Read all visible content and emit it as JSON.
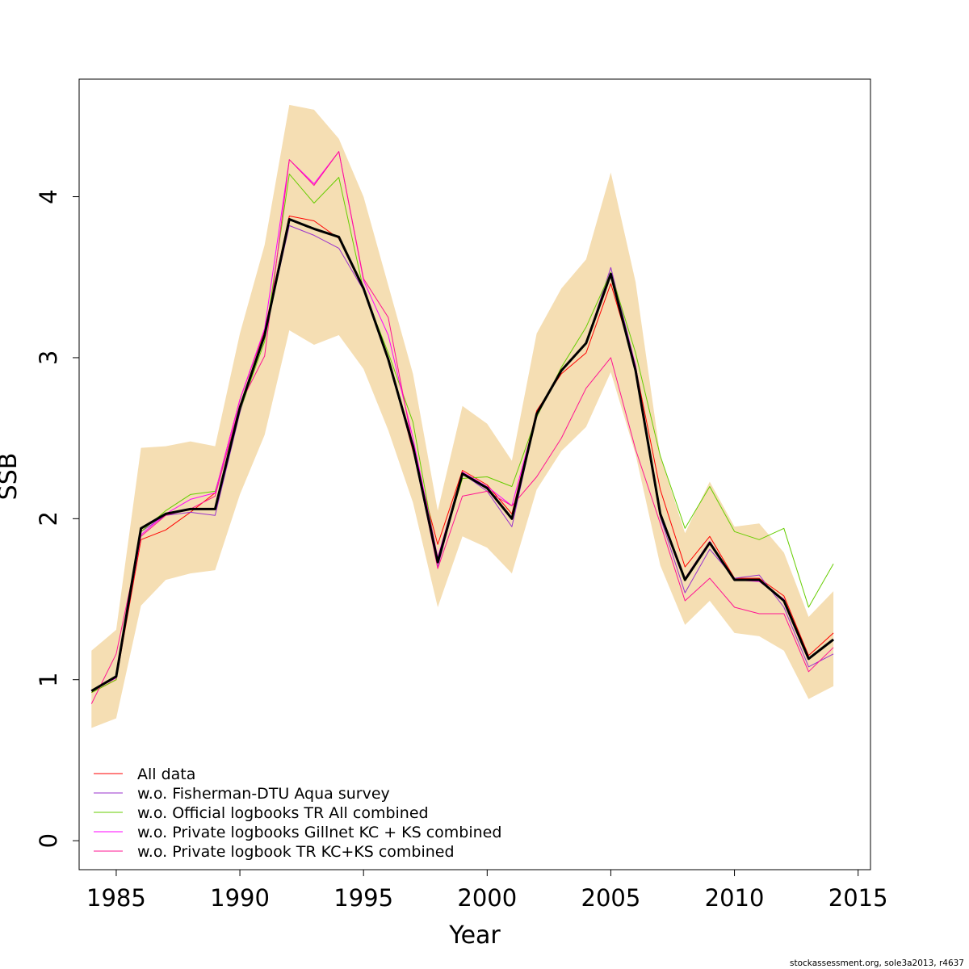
{
  "chart_data": {
    "type": "line",
    "xlabel": "Year",
    "ylabel": "SSB",
    "xlim": [
      1983.5,
      2015.5
    ],
    "ylim": [
      -0.18,
      4.73
    ],
    "x_ticks": [
      1985,
      1990,
      1995,
      2000,
      2005,
      2010,
      2015
    ],
    "y_ticks": [
      0,
      1,
      2,
      3,
      4
    ],
    "grid": false,
    "legend_position": "bottom-left",
    "x": [
      1984,
      1985,
      1986,
      1987,
      1988,
      1989,
      1990,
      1991,
      1992,
      1993,
      1994,
      1995,
      1996,
      1997,
      1998,
      1999,
      2000,
      2001,
      2002,
      2003,
      2004,
      2005,
      2006,
      2007,
      2008,
      2009,
      2010,
      2011,
      2012,
      2013,
      2014
    ],
    "confidence_band": {
      "color": "#f5deb3",
      "upper": [
        1.18,
        1.31,
        2.44,
        2.45,
        2.48,
        2.45,
        3.15,
        3.7,
        4.57,
        4.54,
        4.36,
        4.0,
        3.45,
        2.9,
        2.05,
        2.7,
        2.59,
        2.36,
        3.15,
        3.43,
        3.61,
        4.15,
        3.47,
        2.39,
        1.91,
        2.23,
        1.95,
        1.97,
        1.79,
        1.39,
        1.55
      ],
      "lower": [
        0.7,
        0.76,
        1.46,
        1.62,
        1.66,
        1.68,
        2.15,
        2.52,
        3.17,
        3.08,
        3.14,
        2.93,
        2.55,
        2.1,
        1.45,
        1.89,
        1.82,
        1.66,
        2.18,
        2.42,
        2.57,
        2.91,
        2.4,
        1.71,
        1.34,
        1.49,
        1.29,
        1.27,
        1.18,
        0.88,
        0.96
      ]
    },
    "main_series": {
      "color": "#000000",
      "values": [
        0.93,
        1.02,
        1.94,
        2.03,
        2.06,
        2.06,
        2.69,
        3.14,
        3.86,
        3.8,
        3.75,
        3.43,
        2.99,
        2.45,
        1.73,
        2.28,
        2.19,
        2.0,
        2.65,
        2.92,
        3.09,
        3.52,
        2.92,
        2.03,
        1.62,
        1.85,
        1.62,
        1.62,
        1.49,
        1.13,
        1.25
      ]
    },
    "series": [
      {
        "name": "All data",
        "color": "#ff0000",
        "values": [
          0.92,
          1.0,
          1.87,
          1.93,
          2.04,
          2.16,
          2.74,
          3.17,
          3.88,
          3.85,
          3.74,
          3.42,
          3.0,
          2.42,
          1.84,
          2.3,
          2.21,
          2.03,
          2.67,
          2.9,
          3.03,
          3.46,
          2.94,
          2.18,
          1.7,
          1.89,
          1.63,
          1.63,
          1.52,
          1.15,
          1.29
        ]
      },
      {
        "name": "w.o. Fisherman-DTU Aqua survey",
        "color": "#9932cc",
        "values": [
          0.93,
          1.02,
          1.92,
          2.02,
          2.04,
          2.02,
          2.66,
          3.14,
          3.82,
          3.76,
          3.68,
          3.42,
          2.98,
          2.43,
          1.7,
          2.28,
          2.17,
          1.95,
          2.65,
          2.92,
          3.09,
          3.56,
          2.95,
          2.01,
          1.54,
          1.81,
          1.63,
          1.65,
          1.45,
          1.08,
          1.16
        ]
      },
      {
        "name": "w.o. Official logbooks TR All combined",
        "color": "#66cd00",
        "values": [
          0.92,
          1.0,
          1.92,
          2.05,
          2.15,
          2.17,
          2.67,
          3.1,
          4.14,
          3.96,
          4.12,
          3.42,
          3.03,
          2.6,
          1.74,
          2.25,
          2.26,
          2.2,
          2.63,
          2.94,
          3.19,
          3.53,
          3.03,
          2.39,
          1.94,
          2.2,
          1.92,
          1.87,
          1.94,
          1.45,
          1.72
        ]
      },
      {
        "name": "w.o. Private logbooks Gillnet KC + KS combined",
        "color": "#ff00ff",
        "values": [
          0.93,
          1.01,
          1.9,
          2.03,
          2.12,
          2.16,
          2.74,
          3.18,
          4.23,
          4.08,
          4.28,
          3.48,
          3.14,
          2.5,
          1.76,
          2.29,
          2.2,
          2.08,
          2.65,
          2.92,
          3.09,
          3.52,
          2.95,
          2.04,
          1.63,
          1.86,
          1.62,
          1.61,
          1.5,
          1.13,
          1.25
        ]
      },
      {
        "name": "w.o. Private logbook TR KC+KS combined",
        "color": "#ff1493",
        "values": [
          0.85,
          1.16,
          1.89,
          2.02,
          2.06,
          2.14,
          2.71,
          3.01,
          4.23,
          4.07,
          4.28,
          3.49,
          3.25,
          2.45,
          1.69,
          2.14,
          2.17,
          2.08,
          2.26,
          2.5,
          2.81,
          3.0,
          2.43,
          1.97,
          1.49,
          1.63,
          1.45,
          1.41,
          1.41,
          1.05,
          1.2
        ]
      }
    ]
  },
  "footer": "stockassessment.org, sole3a2013, r4637"
}
